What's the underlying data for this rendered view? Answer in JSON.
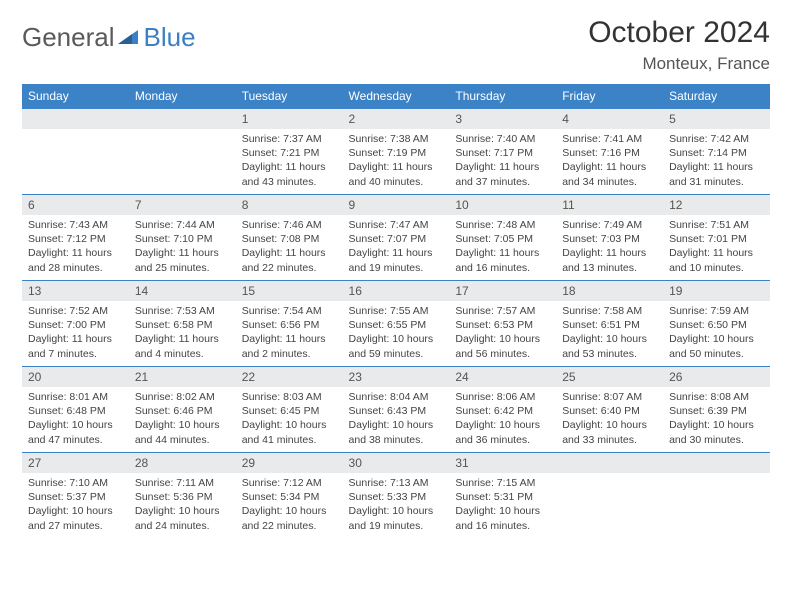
{
  "brand": {
    "part1": "General",
    "part2": "Blue"
  },
  "title": "October 2024",
  "location": "Monteux, France",
  "colors": {
    "header_bg": "#3b82c7",
    "header_text": "#ffffff",
    "daynum_bg": "#e9eaeb",
    "cell_border": "#3b82c7",
    "brand_gray": "#5a5a5a",
    "brand_blue": "#3b7fc4"
  },
  "day_names": [
    "Sunday",
    "Monday",
    "Tuesday",
    "Wednesday",
    "Thursday",
    "Friday",
    "Saturday"
  ],
  "weeks": [
    [
      null,
      null,
      {
        "n": "1",
        "sr": "7:37 AM",
        "ss": "7:21 PM",
        "dl": "11 hours and 43 minutes."
      },
      {
        "n": "2",
        "sr": "7:38 AM",
        "ss": "7:19 PM",
        "dl": "11 hours and 40 minutes."
      },
      {
        "n": "3",
        "sr": "7:40 AM",
        "ss": "7:17 PM",
        "dl": "11 hours and 37 minutes."
      },
      {
        "n": "4",
        "sr": "7:41 AM",
        "ss": "7:16 PM",
        "dl": "11 hours and 34 minutes."
      },
      {
        "n": "5",
        "sr": "7:42 AM",
        "ss": "7:14 PM",
        "dl": "11 hours and 31 minutes."
      }
    ],
    [
      {
        "n": "6",
        "sr": "7:43 AM",
        "ss": "7:12 PM",
        "dl": "11 hours and 28 minutes."
      },
      {
        "n": "7",
        "sr": "7:44 AM",
        "ss": "7:10 PM",
        "dl": "11 hours and 25 minutes."
      },
      {
        "n": "8",
        "sr": "7:46 AM",
        "ss": "7:08 PM",
        "dl": "11 hours and 22 minutes."
      },
      {
        "n": "9",
        "sr": "7:47 AM",
        "ss": "7:07 PM",
        "dl": "11 hours and 19 minutes."
      },
      {
        "n": "10",
        "sr": "7:48 AM",
        "ss": "7:05 PM",
        "dl": "11 hours and 16 minutes."
      },
      {
        "n": "11",
        "sr": "7:49 AM",
        "ss": "7:03 PM",
        "dl": "11 hours and 13 minutes."
      },
      {
        "n": "12",
        "sr": "7:51 AM",
        "ss": "7:01 PM",
        "dl": "11 hours and 10 minutes."
      }
    ],
    [
      {
        "n": "13",
        "sr": "7:52 AM",
        "ss": "7:00 PM",
        "dl": "11 hours and 7 minutes."
      },
      {
        "n": "14",
        "sr": "7:53 AM",
        "ss": "6:58 PM",
        "dl": "11 hours and 4 minutes."
      },
      {
        "n": "15",
        "sr": "7:54 AM",
        "ss": "6:56 PM",
        "dl": "11 hours and 2 minutes."
      },
      {
        "n": "16",
        "sr": "7:55 AM",
        "ss": "6:55 PM",
        "dl": "10 hours and 59 minutes."
      },
      {
        "n": "17",
        "sr": "7:57 AM",
        "ss": "6:53 PM",
        "dl": "10 hours and 56 minutes."
      },
      {
        "n": "18",
        "sr": "7:58 AM",
        "ss": "6:51 PM",
        "dl": "10 hours and 53 minutes."
      },
      {
        "n": "19",
        "sr": "7:59 AM",
        "ss": "6:50 PM",
        "dl": "10 hours and 50 minutes."
      }
    ],
    [
      {
        "n": "20",
        "sr": "8:01 AM",
        "ss": "6:48 PM",
        "dl": "10 hours and 47 minutes."
      },
      {
        "n": "21",
        "sr": "8:02 AM",
        "ss": "6:46 PM",
        "dl": "10 hours and 44 minutes."
      },
      {
        "n": "22",
        "sr": "8:03 AM",
        "ss": "6:45 PM",
        "dl": "10 hours and 41 minutes."
      },
      {
        "n": "23",
        "sr": "8:04 AM",
        "ss": "6:43 PM",
        "dl": "10 hours and 38 minutes."
      },
      {
        "n": "24",
        "sr": "8:06 AM",
        "ss": "6:42 PM",
        "dl": "10 hours and 36 minutes."
      },
      {
        "n": "25",
        "sr": "8:07 AM",
        "ss": "6:40 PM",
        "dl": "10 hours and 33 minutes."
      },
      {
        "n": "26",
        "sr": "8:08 AM",
        "ss": "6:39 PM",
        "dl": "10 hours and 30 minutes."
      }
    ],
    [
      {
        "n": "27",
        "sr": "7:10 AM",
        "ss": "5:37 PM",
        "dl": "10 hours and 27 minutes."
      },
      {
        "n": "28",
        "sr": "7:11 AM",
        "ss": "5:36 PM",
        "dl": "10 hours and 24 minutes."
      },
      {
        "n": "29",
        "sr": "7:12 AM",
        "ss": "5:34 PM",
        "dl": "10 hours and 22 minutes."
      },
      {
        "n": "30",
        "sr": "7:13 AM",
        "ss": "5:33 PM",
        "dl": "10 hours and 19 minutes."
      },
      {
        "n": "31",
        "sr": "7:15 AM",
        "ss": "5:31 PM",
        "dl": "10 hours and 16 minutes."
      },
      null,
      null
    ]
  ],
  "labels": {
    "sunrise": "Sunrise:",
    "sunset": "Sunset:",
    "daylight": "Daylight:"
  }
}
